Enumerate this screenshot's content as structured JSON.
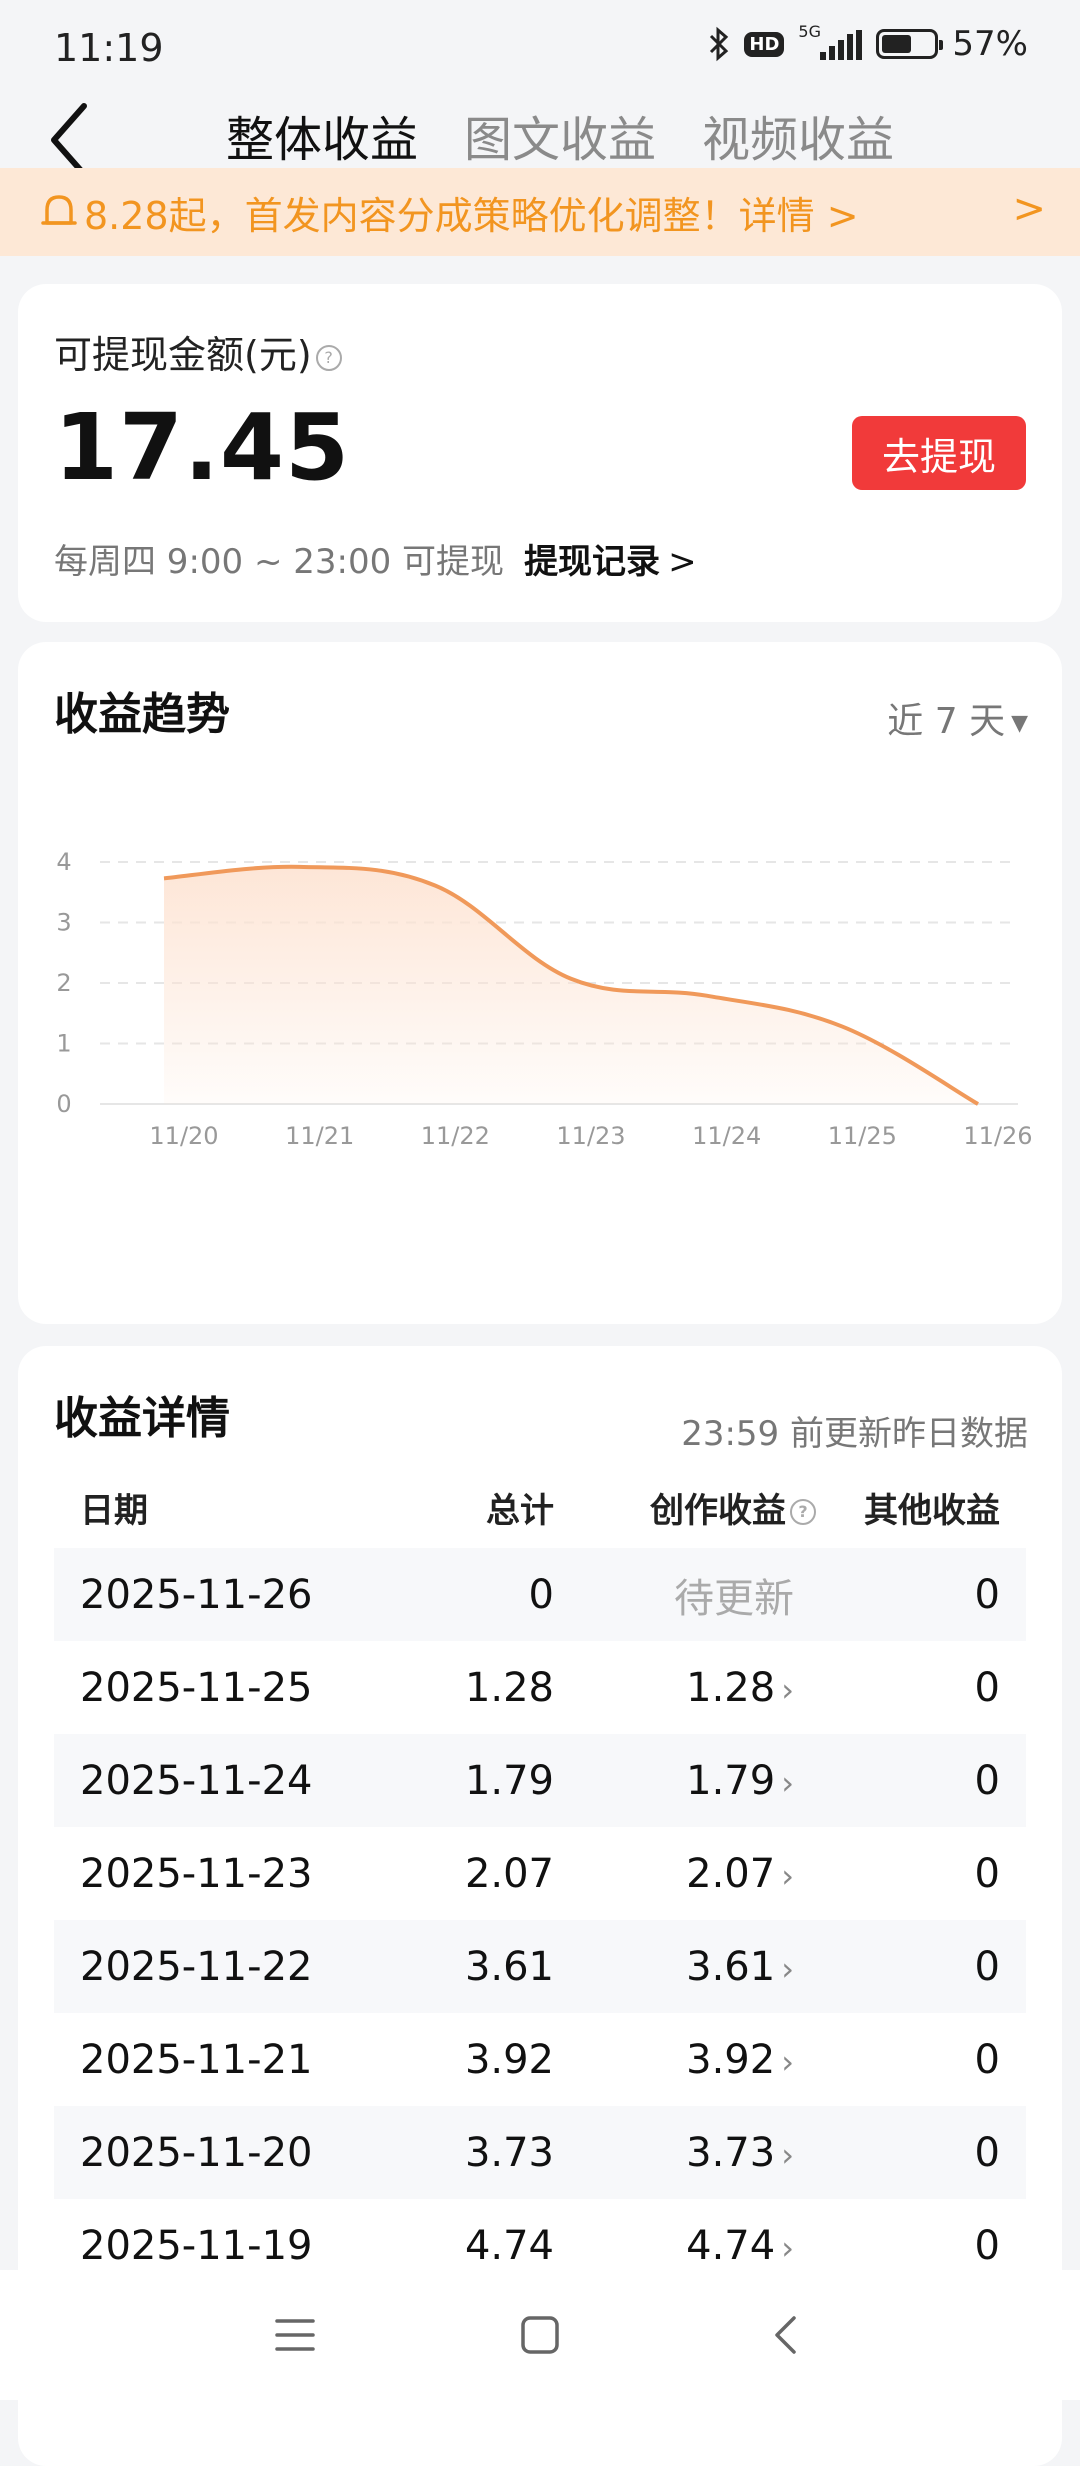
{
  "status": {
    "time": "11:19",
    "network": "5G",
    "hd": "HD",
    "battery": "57%",
    "battery_level": 0.57
  },
  "tabs": [
    {
      "label": "整体收益",
      "active": true
    },
    {
      "label": "图文收益",
      "active": false
    },
    {
      "label": "视频收益",
      "active": false
    }
  ],
  "notice": {
    "text": "8.28起，首发内容分成策略优化调整！详情 >",
    "chevron": ">"
  },
  "balance": {
    "label": "可提现金额(元)",
    "help": "?",
    "amount": "17.45",
    "withdraw_button": "去提现",
    "schedule": "每周四 9:00 ~ 23:00 可提现",
    "records_link": "提现记录",
    "records_chevron": ">"
  },
  "trend": {
    "title": "收益趋势",
    "range": "近 7 天",
    "caret": "▼"
  },
  "chart_data": {
    "type": "area",
    "categories": [
      "11/20",
      "11/21",
      "11/22",
      "11/23",
      "11/24",
      "11/25",
      "11/26"
    ],
    "values": [
      3.73,
      3.92,
      3.61,
      2.07,
      1.79,
      1.28,
      0
    ],
    "yticks": [
      0,
      1,
      2,
      3,
      4
    ],
    "ylim": [
      0,
      4
    ],
    "line_color": "#f0995a",
    "fill_color": "#fde3d2",
    "grid": true
  },
  "detail": {
    "title": "收益详情",
    "note": "23:59 前更新昨日数据",
    "headers": {
      "date": "日期",
      "total": "总计",
      "creation": "创作收益",
      "other": "其他收益"
    },
    "rows": [
      {
        "date": "2025-11-26",
        "total": "0",
        "creation": "待更新",
        "other": "0"
      },
      {
        "date": "2025-11-25",
        "total": "1.28",
        "creation": "1.28",
        "other": "0"
      },
      {
        "date": "2025-11-24",
        "total": "1.79",
        "creation": "1.79",
        "other": "0"
      },
      {
        "date": "2025-11-23",
        "total": "2.07",
        "creation": "2.07",
        "other": "0"
      },
      {
        "date": "2025-11-22",
        "total": "3.61",
        "creation": "3.61",
        "other": "0"
      },
      {
        "date": "2025-11-21",
        "total": "3.92",
        "creation": "3.92",
        "other": "0"
      },
      {
        "date": "2025-11-20",
        "total": "3.73",
        "creation": "3.73",
        "other": "0"
      },
      {
        "date": "2025-11-19",
        "total": "4.74",
        "creation": "4.74",
        "other": "0"
      }
    ]
  },
  "colors": {
    "accent": "#f13a3a",
    "notice_text": "#f29520",
    "notice_bg": "#fde8d6"
  }
}
